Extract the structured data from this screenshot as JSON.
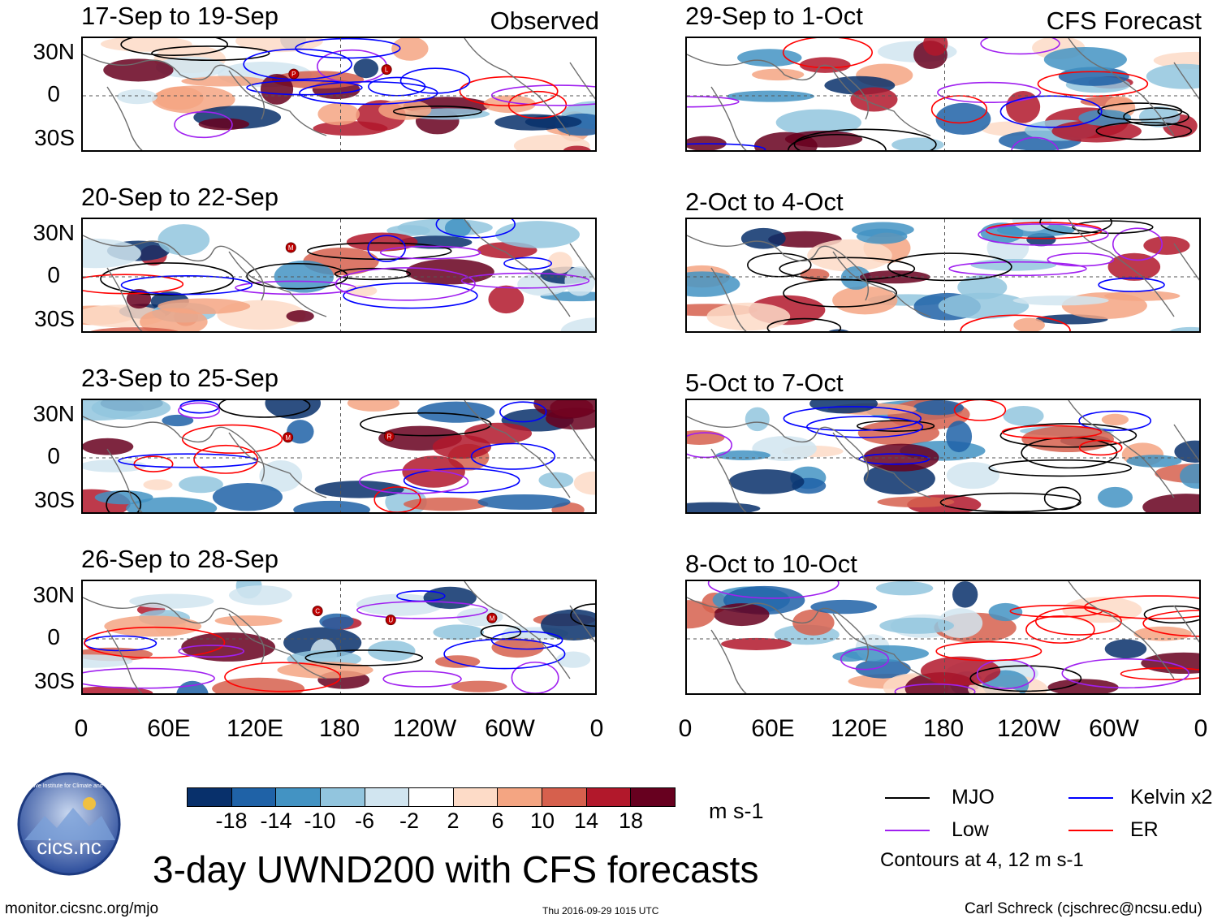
{
  "panels": {
    "observed": [
      {
        "title": "17-Sep to 19-Sep",
        "label": "Observed",
        "storms": [
          "P",
          "L"
        ]
      },
      {
        "title": "20-Sep to 22-Sep",
        "storms": [
          "M"
        ]
      },
      {
        "title": "23-Sep to 25-Sep",
        "storms": [
          "M",
          "R"
        ]
      },
      {
        "title": "26-Sep to 28-Sep",
        "storms": [
          "C",
          "U",
          "M"
        ]
      }
    ],
    "forecast": [
      {
        "title": "29-Sep to 1-Oct",
        "label": "CFS Forecast"
      },
      {
        "title": "2-Oct to 4-Oct"
      },
      {
        "title": "5-Oct to 7-Oct"
      },
      {
        "title": "8-Oct to 10-Oct"
      }
    ]
  },
  "lat_labels": [
    "30N",
    "0",
    "30S"
  ],
  "lon_labels": [
    "0",
    "60E",
    "120E",
    "180",
    "120W",
    "60W",
    "0"
  ],
  "colorbar": {
    "units": "m s-1",
    "ticks": [
      "-18",
      "-14",
      "-10",
      "-6",
      "-2",
      "2",
      "6",
      "10",
      "14",
      "18"
    ],
    "colors": [
      "#08306b",
      "#1f62a7",
      "#4393c3",
      "#92c5de",
      "#d1e5f0",
      "#ffffff",
      "#fddbc7",
      "#f4a582",
      "#d6604d",
      "#b2182b",
      "#67001f"
    ]
  },
  "legend": {
    "items": [
      {
        "label": "MJO",
        "color": "#000000"
      },
      {
        "label": "Kelvin x2",
        "color": "#0000ff"
      },
      {
        "label": "Low",
        "color": "#a020f0"
      },
      {
        "label": "ER",
        "color": "#ff0000"
      }
    ],
    "note": "Contours at 4, 12 m s-1"
  },
  "title": "3-day UWND200 with CFS forecasts",
  "logo_text": "cics.nc",
  "logo_arc_text": "Cooperative Institute for Climate and Satellites",
  "footer": {
    "url": "monitor.cicsnc.org/mjo",
    "timestamp": "Thu 2016-09-29 1015 UTC",
    "credit": "Carl Schreck (cjschrec@ncsu.edu)"
  }
}
